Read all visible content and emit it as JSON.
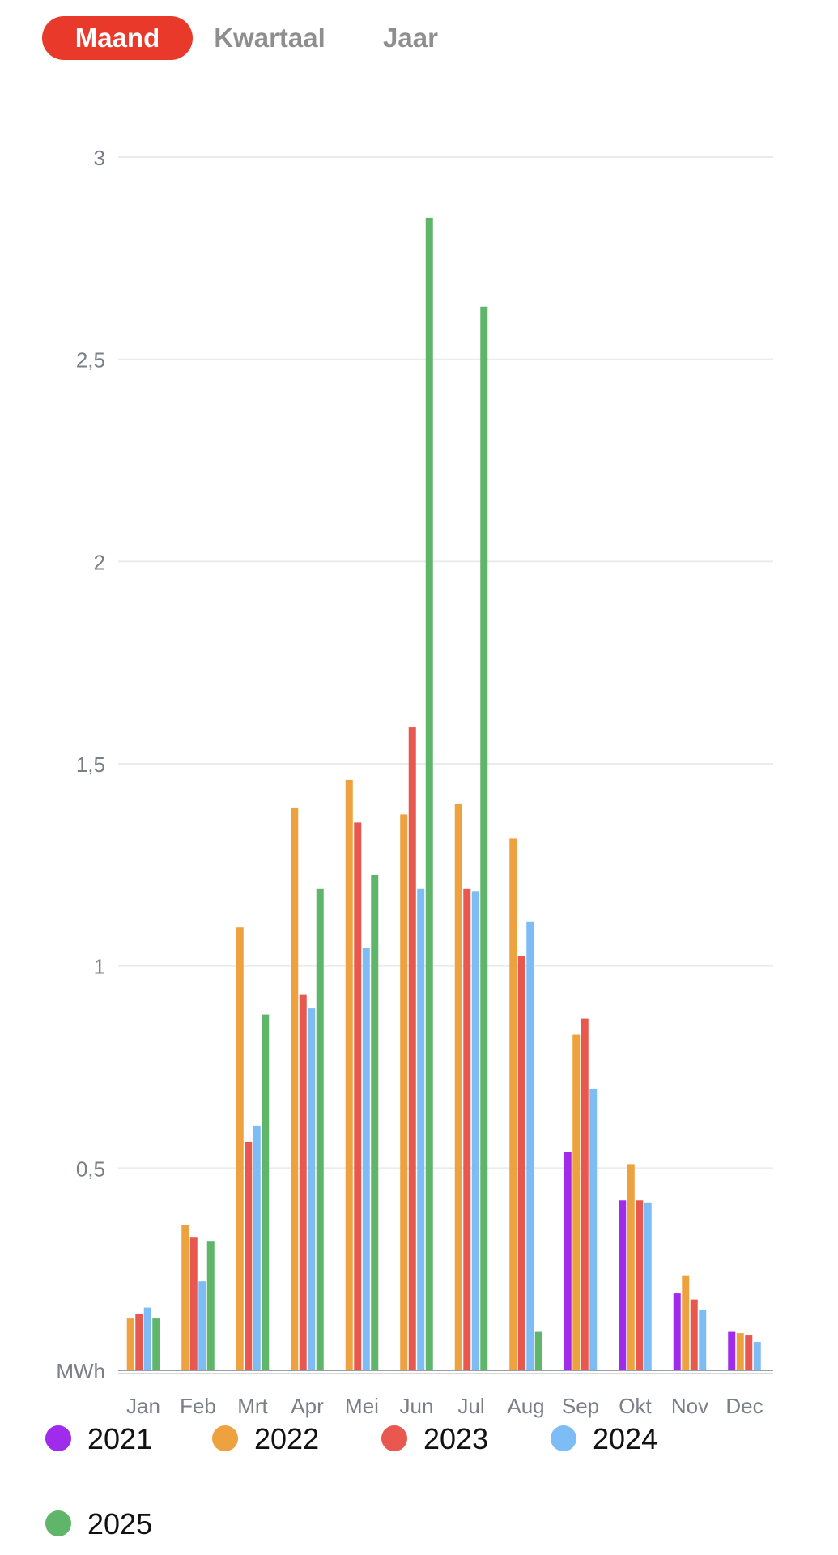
{
  "period_tabs": {
    "items": [
      {
        "label": "Maand",
        "active": true
      },
      {
        "label": "Kwartaal",
        "active": false
      },
      {
        "label": "Jaar",
        "active": false
      }
    ],
    "active_color": "#e8392b",
    "active_text_color": "#ffffff",
    "inactive_text_color": "#8e8e8e"
  },
  "chart_data": {
    "type": "bar",
    "unit_label": "MWh",
    "categories": [
      "Jan",
      "Feb",
      "Mrt",
      "Apr",
      "Mei",
      "Jun",
      "Jul",
      "Aug",
      "Sep",
      "Okt",
      "Nov",
      "Dec"
    ],
    "y_ticks": [
      "3",
      "2,5",
      "2",
      "1,5",
      "1",
      "0,5"
    ],
    "y_tick_values": [
      3,
      2.5,
      2,
      1.5,
      1,
      0.5
    ],
    "ylim": [
      0,
      3
    ],
    "grid": true,
    "legend_position": "bottom",
    "series": [
      {
        "name": "2021",
        "color": "#a12bea",
        "values": [
          null,
          null,
          null,
          null,
          null,
          null,
          null,
          null,
          0.54,
          0.42,
          0.19,
          0.095
        ]
      },
      {
        "name": "2022",
        "color": "#eda23f",
        "values": [
          0.13,
          0.36,
          1.095,
          1.39,
          1.46,
          1.375,
          1.4,
          1.315,
          0.83,
          0.51,
          0.235,
          0.092
        ]
      },
      {
        "name": "2023",
        "color": "#e8584f",
        "values": [
          0.14,
          0.33,
          0.565,
          0.93,
          1.355,
          1.59,
          1.19,
          1.025,
          0.87,
          0.42,
          0.175,
          0.088
        ]
      },
      {
        "name": "2024",
        "color": "#7dbcf5",
        "values": [
          0.155,
          0.22,
          0.605,
          0.895,
          1.045,
          1.19,
          1.185,
          1.11,
          0.695,
          0.415,
          0.15,
          0.07
        ]
      },
      {
        "name": "2025",
        "color": "#5fb56a",
        "values": [
          0.13,
          0.32,
          0.88,
          1.19,
          1.225,
          2.85,
          2.63,
          0.095,
          null,
          null,
          null,
          null
        ]
      }
    ]
  }
}
